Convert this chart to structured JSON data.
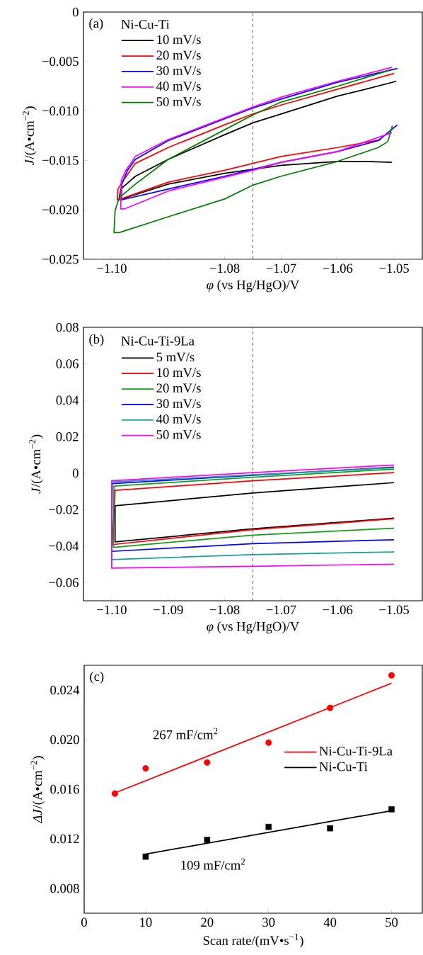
{
  "chart_data": [
    {
      "type": "line",
      "xlabel": "*φ* (vs Hg/HgO)/V",
      "ylabel": "*J*/(A•cm$^{−2}$)",
      "legend_title": "Ni-Cu-Ti",
      "legend": "top left",
      "annotations": [
        "(a)"
      ],
      "xlim": [
        -1.105,
        -1.045
      ],
      "ylim": [
        -0.025,
        0
      ],
      "xticks": [
        {
          "value": -1.1,
          "label": "−1.10"
        },
        {
          "value": -1.09,
          "label": null
        },
        {
          "value": -1.08,
          "label": "−1.08"
        },
        {
          "value": -1.07,
          "label": "−1.07"
        },
        {
          "value": -1.06,
          "label": "−1.06"
        },
        {
          "value": -1.05,
          "label": "−1.05"
        }
      ],
      "yticks": [
        0,
        {
          "value": -0.005,
          "label": "−0.005"
        },
        {
          "value": -0.01,
          "label": "−0.010"
        },
        {
          "value": -0.015,
          "label": "−0.015"
        },
        {
          "value": -0.02,
          "label": "−0.020"
        },
        {
          "value": -0.025,
          "label": "−0.025"
        }
      ],
      "ref_lines": [
        {
          "axis": "x",
          "value": -1.075,
          "line_style": "dashed"
        }
      ],
      "series": [
        {
          "name": "10 mV/s",
          "color": "#000000",
          "x": [
            -1.0496,
            -1.055,
            -1.06,
            -1.07,
            -1.075,
            -1.08,
            -1.09,
            -1.0958,
            -1.0984,
            -1.0987,
            -1.09,
            -1.08,
            -1.07,
            -1.06,
            -1.055,
            -1.0504
          ],
          "values": [
            -0.007,
            -0.0078,
            -0.0085,
            -0.0103,
            -0.0112,
            -0.0124,
            -0.0149,
            -0.0166,
            -0.0179,
            -0.019,
            -0.0174,
            -0.0163,
            -0.0155,
            -0.0151,
            -0.0151,
            -0.0152
          ]
        },
        {
          "name": "20 mV/s",
          "color": "#ff0000",
          "x": [
            -1.05,
            -1.06,
            -1.07,
            -1.075,
            -1.08,
            -1.09,
            -1.0958,
            -1.0979,
            -1.0989,
            -1.099,
            -1.0984,
            -1.09,
            -1.08,
            -1.075,
            -1.07,
            -1.06,
            -1.0523
          ],
          "values": [
            -0.0062,
            -0.0078,
            -0.0094,
            -0.0103,
            -0.0114,
            -0.0137,
            -0.0153,
            -0.017,
            -0.0179,
            -0.019,
            -0.0189,
            -0.0172,
            -0.016,
            -0.0153,
            -0.0146,
            -0.0137,
            -0.0129
          ]
        },
        {
          "name": "30 mV/s",
          "color": "#0000ff",
          "x": [
            -1.0494,
            -1.06,
            -1.07,
            -1.075,
            -1.08,
            -1.09,
            -1.0958,
            -1.0972,
            -1.0982,
            -1.0983,
            -1.09,
            -1.08,
            -1.075,
            -1.07,
            -1.06,
            -1.0528,
            -1.0494
          ],
          "values": [
            -0.0057,
            -0.0071,
            -0.0088,
            -0.0097,
            -0.0108,
            -0.013,
            -0.0149,
            -0.016,
            -0.0174,
            -0.019,
            -0.0179,
            -0.0166,
            -0.0159,
            -0.0152,
            -0.0141,
            -0.013,
            -0.0114
          ]
        },
        {
          "name": "40 mV/s",
          "color": "#ff00ff",
          "x": [
            -1.0504,
            -1.06,
            -1.07,
            -1.075,
            -1.08,
            -1.09,
            -1.0958,
            -1.0975,
            -1.0983,
            -1.0984,
            -1.0977,
            -1.09,
            -1.08,
            -1.075,
            -1.07,
            -1.06,
            -1.0504
          ],
          "values": [
            -0.0056,
            -0.007,
            -0.0086,
            -0.0096,
            -0.0107,
            -0.0129,
            -0.0146,
            -0.016,
            -0.017,
            -0.0199,
            -0.0199,
            -0.0181,
            -0.0167,
            -0.016,
            -0.0152,
            -0.0141,
            -0.0122
          ]
        },
        {
          "name": "50 mV/s",
          "color": "#008000",
          "x": [
            -1.0509,
            -1.06,
            -1.07,
            -1.075,
            -1.08,
            -1.09,
            -1.0958,
            -1.0987,
            -1.0994,
            -1.0996,
            -1.0987,
            -1.09,
            -1.08,
            -1.075,
            -1.07,
            -1.06,
            -1.0528,
            -1.0511,
            -1.0503
          ],
          "values": [
            -0.0059,
            -0.0075,
            -0.0091,
            -0.0104,
            -0.0119,
            -0.0149,
            -0.0174,
            -0.0188,
            -0.0201,
            -0.0223,
            -0.0223,
            -0.0207,
            -0.0189,
            -0.0175,
            -0.0166,
            -0.0151,
            -0.0137,
            -0.0131,
            -0.0115
          ]
        }
      ]
    },
    {
      "type": "line",
      "xlabel": "*φ* (vs Hg/HgO)/V",
      "ylabel": "*J*/(A•cm$^{−2}$)",
      "legend_title": "Ni-Cu-Ti-9La",
      "legend": "top left",
      "annotations": [
        "(b)"
      ],
      "xlim": [
        -1.105,
        -1.045
      ],
      "ylim": [
        -0.07,
        0.08
      ],
      "xticks": [
        {
          "value": -1.1,
          "label": "−1.10"
        },
        {
          "value": -1.09,
          "label": "−1.09"
        },
        {
          "value": -1.08,
          "label": "−1.08"
        },
        {
          "value": -1.07,
          "label": "−1.07"
        },
        {
          "value": -1.06,
          "label": "−1.06"
        },
        {
          "value": -1.05,
          "label": "−1.05"
        }
      ],
      "yticks": [
        0.08,
        0.06,
        0.04,
        0.02,
        0,
        {
          "value": -0.02,
          "label": "−0.02"
        },
        {
          "value": -0.04,
          "label": "−0.04"
        },
        {
          "value": -0.06,
          "label": "−0.06"
        }
      ],
      "ref_lines": [
        {
          "axis": "x",
          "value": -1.075,
          "line_style": "dashed"
        }
      ],
      "series": [
        {
          "name": "5 mV/s",
          "color": "#000000",
          "x": [
            -1.05,
            -1.075,
            -1.0994,
            -1.0994,
            -1.075,
            -1.05
          ],
          "values": [
            -0.0052,
            -0.0109,
            -0.0179,
            -0.0377,
            -0.0305,
            -0.0247
          ]
        },
        {
          "name": "10 mV/s",
          "color": "#ff0000",
          "x": [
            -1.05,
            -1.075,
            -1.0994,
            -1.0999,
            -1.075,
            -1.05
          ],
          "values": [
            0.0003,
            -0.0042,
            -0.0094,
            -0.0392,
            -0.031,
            -0.025
          ]
        },
        {
          "name": "20 mV/s",
          "color": "#10a010",
          "x": [
            -1.05,
            -1.075,
            -1.0996,
            -1.0997,
            -1.075,
            -1.05
          ],
          "values": [
            0.0022,
            -0.0022,
            -0.0071,
            -0.0407,
            -0.034,
            -0.0302
          ]
        },
        {
          "name": "30 mV/s",
          "color": "#0000ff",
          "x": [
            -1.05,
            -1.075,
            -1.0999,
            -1.1,
            -1.075,
            -1.05
          ],
          "values": [
            0.0033,
            -0.0012,
            -0.0057,
            -0.0429,
            -0.0387,
            -0.0365
          ]
        },
        {
          "name": "40 mV/s",
          "color": "#1a9e9e",
          "x": [
            -1.05,
            -1.075,
            -1.1,
            -1.1,
            -1.075,
            -1.05
          ],
          "values": [
            0.003,
            -0.0009,
            -0.0049,
            -0.0474,
            -0.0447,
            -0.0432
          ]
        },
        {
          "name": "50 mV/s",
          "color": "#ff00ff",
          "x": [
            -1.05,
            -1.075,
            -1.1,
            -1.1,
            -1.075,
            -1.05
          ],
          "values": [
            0.0045,
            0.0003,
            -0.0042,
            -0.0521,
            -0.0511,
            -0.0499
          ]
        }
      ]
    },
    {
      "type": "scatter",
      "xlabel": "Scan rate/(mV•s$^{−1}$)",
      "ylabel": "*ΔJ*/(A•cm$^{−2}$)",
      "legend": "right",
      "annotations": [
        "(c)",
        "267 mF/cm$^{2}$",
        "109 mF/cm$^{2}$"
      ],
      "xlim": [
        0,
        55
      ],
      "ylim": [
        0.006,
        0.026
      ],
      "xticks": [
        0,
        10,
        20,
        30,
        40,
        50
      ],
      "yticks": [
        0.008,
        0.012,
        0.016,
        {
          "value": 0.02,
          "label": "0.020"
        },
        0.024
      ],
      "series": [
        {
          "type": "scatter",
          "marker": "circle",
          "color": "#ff0000",
          "x": [
            5,
            10,
            20,
            30,
            40,
            50
          ],
          "values": [
            0.01565,
            0.01768,
            0.01816,
            0.01976,
            0.02256,
            0.02518
          ]
        },
        {
          "type": "line",
          "name": "Ni-Cu-Ti-9La",
          "color": "#ff0000",
          "x": [
            5,
            50
          ],
          "values": [
            0.0157,
            0.02455
          ]
        },
        {
          "type": "scatter",
          "marker": "square",
          "color": "#000000",
          "x": [
            10,
            20,
            30,
            40,
            50
          ],
          "values": [
            0.01056,
            0.01191,
            0.01296,
            0.01285,
            0.01438
          ]
        },
        {
          "type": "line",
          "name": "Ni-Cu-Ti",
          "color": "#000000",
          "x": [
            10,
            50
          ],
          "values": [
            0.01077,
            0.01427
          ]
        }
      ]
    }
  ]
}
